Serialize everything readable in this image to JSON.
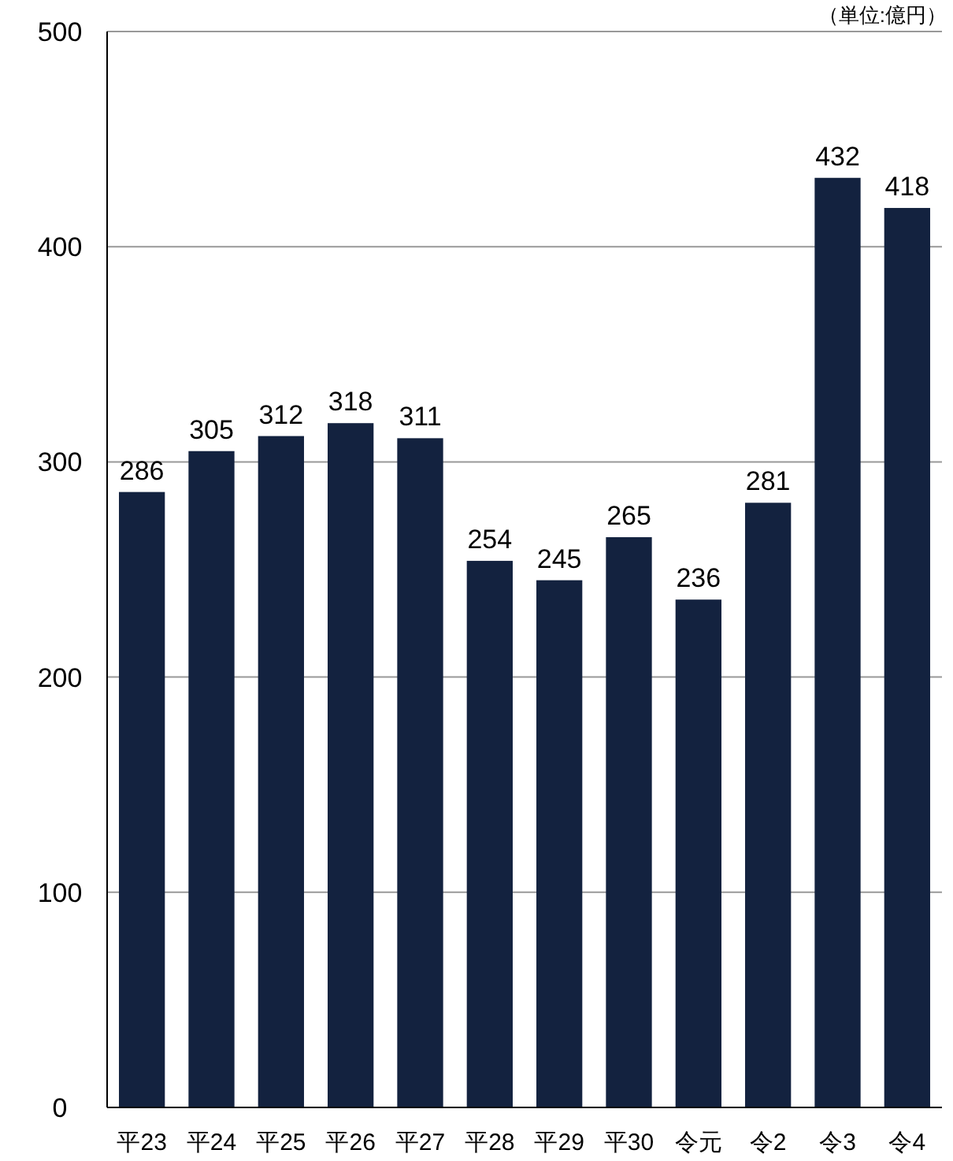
{
  "chart_data": {
    "type": "bar",
    "categories": [
      "平23",
      "平24",
      "平25",
      "平26",
      "平27",
      "平28",
      "平29",
      "平30",
      "令元",
      "令2",
      "令3",
      "令4"
    ],
    "values": [
      286,
      305,
      312,
      318,
      311,
      254,
      245,
      265,
      236,
      281,
      432,
      418
    ],
    "color": "#13223f",
    "ylim": [
      0,
      500
    ],
    "yticks": [
      0,
      100,
      200,
      300,
      400,
      500
    ],
    "grid": "y",
    "data_labels": true,
    "annotations": [
      "（単位:億円）"
    ]
  }
}
